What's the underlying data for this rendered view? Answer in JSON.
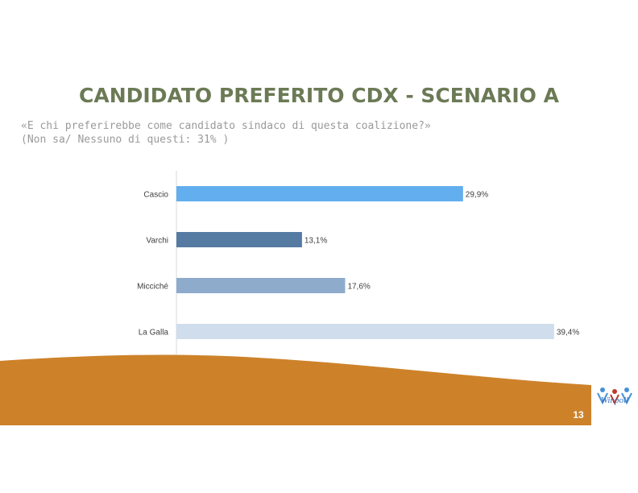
{
  "title": "CANDIDATO PREFERITO CDX - SCENARIO A",
  "subtitle_line1": "«E chi preferirebbe come candidato sindaco di questa coalizione?»",
  "subtitle_line2": "(Non sa/ Nessuno di questi: 31% )",
  "page_number": "13",
  "logo_text": "Winpoll",
  "chart_data": {
    "type": "bar",
    "orientation": "horizontal",
    "categories": [
      "Cascio",
      "Varchi",
      "Micciché",
      "La Galla"
    ],
    "values": [
      29.9,
      13.1,
      17.6,
      39.4
    ],
    "value_labels": [
      "29,9%",
      "13,1%",
      "17,6%",
      "39,4%"
    ],
    "colors": [
      "#62aeee",
      "#557ba3",
      "#8eabcc",
      "#d0ddec"
    ],
    "xlim": [
      0,
      40
    ],
    "grid": false,
    "legend": "none"
  },
  "colors": {
    "title": "#6b7a55",
    "wave": "#cd822a",
    "axis": "#d9d9d9"
  }
}
